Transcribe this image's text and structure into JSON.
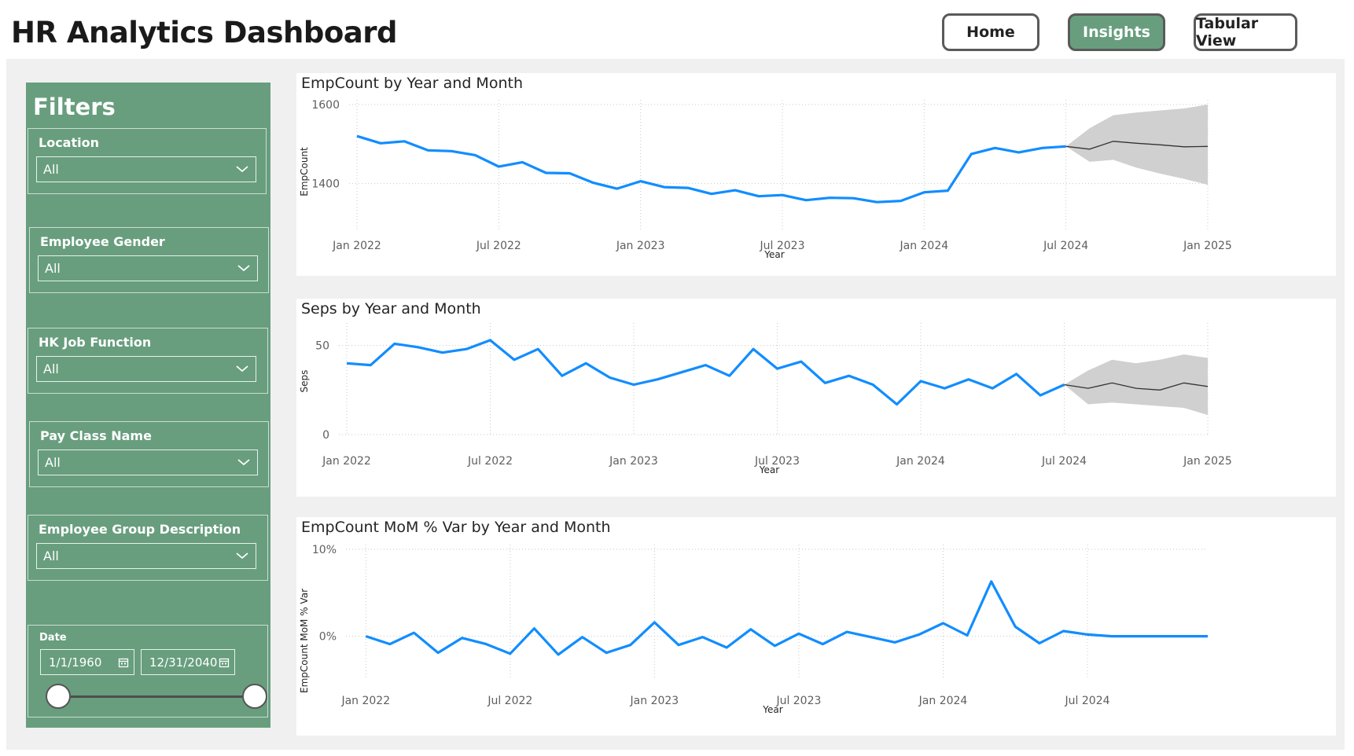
{
  "header": {
    "title": "HR Analytics Dashboard",
    "nav": {
      "home": "Home",
      "insights": "Insights",
      "tabular": "Tabular View"
    },
    "active_nav": "insights"
  },
  "filters": {
    "title": "Filters",
    "location": {
      "label": "Location",
      "value": "All"
    },
    "gender": {
      "label": "Employee Gender",
      "value": "All"
    },
    "job_function": {
      "label": "HK Job Function",
      "value": "All"
    },
    "pay_class": {
      "label": "Pay Class Name",
      "value": "All"
    },
    "employee_group": {
      "label": "Employee Group Description",
      "value": "All"
    },
    "date": {
      "label": "Date",
      "start": "1/1/1960",
      "end": "12/31/2040",
      "range_fraction": [
        0,
        1
      ]
    }
  },
  "colors": {
    "accent": "#689e7e",
    "line": "#118dff",
    "forecast_band": "#d0d0d0",
    "forecast_line": "#333333"
  },
  "chart_data": [
    {
      "id": "empcount",
      "type": "line",
      "title": "EmpCount by Year and Month",
      "xlabel": "Year",
      "ylabel": "EmpCount",
      "x_ticks": [
        "Jan 2022",
        "Jul 2022",
        "Jan 2023",
        "Jul 2023",
        "Jan 2024",
        "Jul 2024",
        "Jan 2025"
      ],
      "y_ticks": [
        "1600",
        "1400"
      ],
      "y_tick_values": [
        1600,
        1400
      ],
      "ylim": [
        1260,
        1600
      ],
      "x_range_months": [
        0,
        36
      ],
      "grid": true,
      "series": [
        {
          "x": [
            0,
            1,
            2,
            3,
            4,
            5,
            6,
            7,
            8,
            9,
            10,
            11,
            12,
            13,
            14,
            15,
            16,
            17,
            18,
            19,
            20,
            21,
            22,
            23,
            24,
            25,
            26,
            27,
            28,
            29,
            30
          ],
          "values": [
            1520,
            1502,
            1507,
            1484,
            1482,
            1472,
            1443,
            1454,
            1427,
            1426,
            1402,
            1387,
            1406,
            1391,
            1389,
            1374,
            1383,
            1368,
            1371,
            1358,
            1364,
            1363,
            1353,
            1356,
            1378,
            1382,
            1475,
            1490,
            1479,
            1490,
            1494
          ]
        }
      ],
      "forecast": {
        "x": [
          30,
          31,
          32,
          33,
          34,
          35,
          36
        ],
        "values": [
          1494,
          1487,
          1507,
          1502,
          1498,
          1493,
          1494
        ],
        "lower": [
          1494,
          1455,
          1460,
          1440,
          1425,
          1412,
          1397
        ],
        "upper": [
          1494,
          1540,
          1573,
          1580,
          1585,
          1590,
          1600
        ]
      }
    },
    {
      "id": "seps",
      "type": "line",
      "title": "Seps by Year and Month",
      "xlabel": "Year",
      "ylabel": "Seps",
      "x_ticks": [
        "Jan 2022",
        "Jul 2022",
        "Jan 2023",
        "Jul 2023",
        "Jan 2024",
        "Jul 2024",
        "Jan 2025"
      ],
      "y_ticks": [
        "50",
        "0"
      ],
      "y_tick_values": [
        50,
        0
      ],
      "ylim": [
        0,
        60
      ],
      "x_range_months": [
        0,
        36
      ],
      "grid": true,
      "series": [
        {
          "x": [
            0,
            1,
            2,
            3,
            4,
            5,
            6,
            7,
            8,
            9,
            10,
            11,
            12,
            13,
            14,
            15,
            16,
            17,
            18,
            19,
            20,
            21,
            22,
            23,
            24,
            25,
            26,
            27,
            28,
            29,
            30
          ],
          "values": [
            40,
            39,
            51,
            49,
            46,
            48,
            53,
            42,
            48,
            33,
            40,
            32,
            28,
            31,
            35,
            39,
            33,
            48,
            37,
            41,
            29,
            33,
            28,
            17,
            30,
            26,
            31,
            26,
            34,
            22,
            28
          ]
        }
      ],
      "forecast": {
        "x": [
          30,
          31,
          32,
          33,
          34,
          35,
          36
        ],
        "values": [
          28,
          26,
          29,
          26,
          25,
          29,
          27
        ],
        "lower": [
          28,
          17,
          18,
          17,
          16,
          15,
          11
        ],
        "upper": [
          28,
          36,
          42,
          40,
          42,
          45,
          43
        ]
      }
    },
    {
      "id": "mom",
      "type": "line",
      "title": "EmpCount MoM % Var by Year and Month",
      "xlabel": "Year",
      "ylabel": "EmpCount MoM % Var",
      "x_ticks": [
        "Jan 2022",
        "Jul 2022",
        "Jan 2023",
        "Jul 2023",
        "Jan 2024",
        "Jul 2024"
      ],
      "y_ticks": [
        "10%",
        "0%"
      ],
      "y_tick_values": [
        10,
        0
      ],
      "ylim": [
        -6,
        10
      ],
      "x_range_months": [
        -0.5,
        35
      ],
      "grid": true,
      "series": [
        {
          "x": [
            0,
            1,
            2,
            3,
            4,
            5,
            6,
            7,
            8,
            9,
            10,
            11,
            12,
            13,
            14,
            15,
            16,
            17,
            18,
            19,
            20,
            21,
            22,
            23,
            24,
            25,
            26,
            27,
            28,
            29,
            30,
            31,
            32,
            33,
            34,
            35
          ],
          "values": [
            0.0,
            -0.9,
            0.4,
            -1.9,
            -0.2,
            -0.9,
            -2.0,
            0.9,
            -2.1,
            -0.1,
            -1.9,
            -1.0,
            1.6,
            -1.0,
            -0.1,
            -1.3,
            0.8,
            -1.1,
            0.3,
            -0.9,
            0.5,
            -0.1,
            -0.7,
            0.2,
            1.5,
            0.1,
            6.3,
            1.1,
            -0.8,
            0.6,
            0.2,
            0.0,
            0.0,
            0.0,
            0.0,
            0.0
          ]
        }
      ]
    }
  ]
}
